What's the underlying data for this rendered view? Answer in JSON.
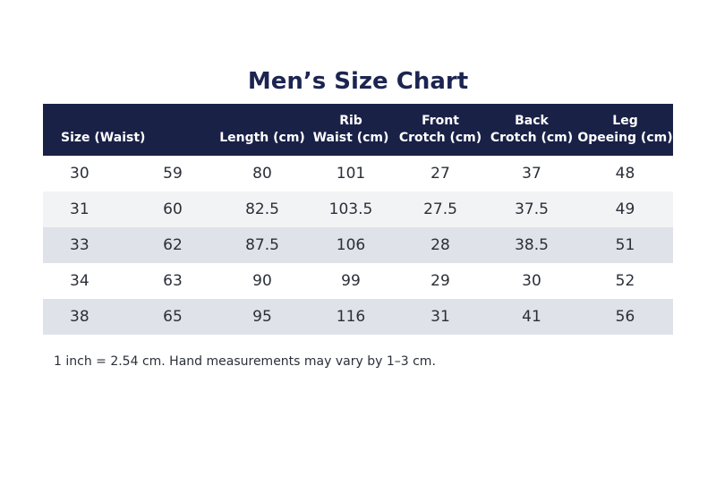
{
  "title": "Men’s Size Chart",
  "headers": [
    {
      "line1": "",
      "line2": "Size (Waist)"
    },
    {
      "line1": "",
      "line2": ""
    },
    {
      "line1": "",
      "line2": "Length (cm)"
    },
    {
      "line1": "Rib",
      "line2": "Waist (cm)"
    },
    {
      "line1": "Front",
      "line2": "Crotch (cm)"
    },
    {
      "line1": "Back",
      "line2": "Crotch (cm)"
    },
    {
      "line1": "Leg",
      "line2": "Opeeing (cm)"
    }
  ],
  "rows": [
    [
      "30",
      "59",
      "80",
      "101",
      "27",
      "37",
      "48"
    ],
    [
      "31",
      "60",
      "82.5",
      "103.5",
      "27.5",
      "37.5",
      "49"
    ],
    [
      "33",
      "62",
      "87.5",
      "106",
      "28",
      "38.5",
      "51"
    ],
    [
      "34",
      "63",
      "90",
      "99",
      "29",
      "30",
      "52"
    ],
    [
      "38",
      "65",
      "95",
      "116",
      "31",
      "41",
      "56"
    ]
  ],
  "note": "1 inch = 2.54 cm. Hand measurements may vary by 1–3 cm.",
  "colors": {
    "header_bg": "#1a2147",
    "title": "#1c2450"
  }
}
